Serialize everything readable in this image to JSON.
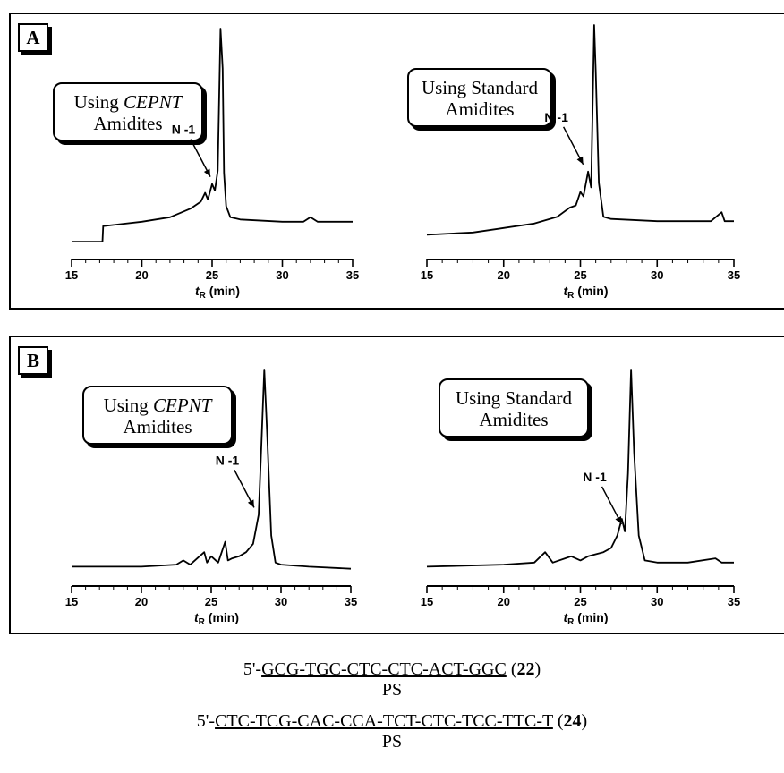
{
  "panels": [
    {
      "label": "A",
      "callouts": [
        {
          "prefix": "Using ",
          "italic": "CEPNT",
          "line2": "Amidites"
        },
        {
          "prefix": "Using Standard",
          "italic": "",
          "line2": "Amidites"
        }
      ]
    },
    {
      "label": "B",
      "callouts": [
        {
          "prefix": "Using ",
          "italic": "CEPNT",
          "line2": "Amidites"
        },
        {
          "prefix": "Using Standard",
          "italic": "",
          "line2": "Amidites"
        }
      ]
    }
  ],
  "axis": {
    "xlabel_main": "t",
    "xlabel_sub": "R",
    "xlabel_unit": " (min)",
    "annotation": "N -1"
  },
  "chart_data": [
    {
      "type": "line",
      "panel": "A",
      "callout": "Using CEPNT Amidites",
      "xlim": [
        15,
        35
      ],
      "xticks": [
        15,
        20,
        25,
        30,
        35
      ],
      "xlabel": "tR (min)",
      "grid": false,
      "annotation": {
        "text": "N -1",
        "x": 25.0
      },
      "series": [
        {
          "x": [
            15,
            17.2,
            17.25,
            20,
            22,
            23.5,
            24.2,
            24.5,
            24.7,
            25.0,
            25.2,
            25.4,
            25.6,
            25.75,
            25.85,
            26.0,
            26.3,
            27,
            30,
            31.5,
            32,
            32.5,
            35
          ],
          "y": [
            0.04,
            0.04,
            0.11,
            0.13,
            0.15,
            0.19,
            0.22,
            0.26,
            0.23,
            0.3,
            0.27,
            0.36,
            1.0,
            0.82,
            0.35,
            0.2,
            0.15,
            0.14,
            0.13,
            0.13,
            0.15,
            0.13,
            0.13
          ]
        }
      ]
    },
    {
      "type": "line",
      "panel": "A",
      "callout": "Using Standard Amidites",
      "xlim": [
        15,
        35
      ],
      "xticks": [
        15,
        20,
        25,
        30,
        35
      ],
      "xlabel": "tR (min)",
      "grid": false,
      "annotation": {
        "text": "N -1",
        "x": 25.3
      },
      "series": [
        {
          "x": [
            15,
            18,
            20,
            22,
            23.5,
            24.3,
            24.7,
            25.0,
            25.2,
            25.5,
            25.7,
            25.9,
            26.0,
            26.2,
            26.5,
            27,
            30,
            33.5,
            34.2,
            34.4,
            34.6,
            35
          ],
          "y": [
            0.07,
            0.08,
            0.1,
            0.12,
            0.15,
            0.19,
            0.2,
            0.26,
            0.24,
            0.35,
            0.28,
            1.0,
            0.8,
            0.3,
            0.15,
            0.14,
            0.13,
            0.13,
            0.17,
            0.13,
            0.13,
            0.13
          ]
        }
      ]
    },
    {
      "type": "line",
      "panel": "B",
      "callout": "Using CEPNT Amidites",
      "xlim": [
        15,
        35
      ],
      "xticks": [
        15,
        20,
        25,
        30,
        35
      ],
      "xlabel": "tR (min)",
      "grid": false,
      "annotation": {
        "text": "N -1",
        "x": 28.2
      },
      "series": [
        {
          "x": [
            15,
            20,
            22.5,
            23,
            23.5,
            24,
            24.5,
            24.7,
            25,
            25.5,
            26,
            26.2,
            26.5,
            27,
            27.5,
            28,
            28.4,
            28.6,
            28.8,
            29.0,
            29.3,
            29.6,
            30,
            32,
            35
          ],
          "y": [
            0.05,
            0.05,
            0.06,
            0.08,
            0.06,
            0.09,
            0.12,
            0.07,
            0.1,
            0.07,
            0.17,
            0.08,
            0.09,
            0.1,
            0.12,
            0.16,
            0.3,
            0.65,
            1.0,
            0.7,
            0.2,
            0.07,
            0.06,
            0.05,
            0.04
          ]
        }
      ]
    },
    {
      "type": "line",
      "panel": "B",
      "callout": "Using Standard Amidites",
      "xlim": [
        15,
        35
      ],
      "xticks": [
        15,
        20,
        25,
        30,
        35
      ],
      "xlabel": "tR (min)",
      "grid": false,
      "annotation": {
        "text": "N -1",
        "x": 27.8
      },
      "series": [
        {
          "x": [
            15,
            20,
            22,
            22.7,
            23.2,
            24,
            24.4,
            25,
            25.5,
            26,
            26.5,
            27,
            27.4,
            27.7,
            27.9,
            28.1,
            28.3,
            28.5,
            28.8,
            29.2,
            30,
            32,
            33.8,
            34.2,
            35
          ],
          "y": [
            0.05,
            0.06,
            0.07,
            0.12,
            0.07,
            0.09,
            0.1,
            0.08,
            0.1,
            0.11,
            0.12,
            0.14,
            0.2,
            0.28,
            0.22,
            0.5,
            1.0,
            0.6,
            0.2,
            0.08,
            0.07,
            0.07,
            0.09,
            0.07,
            0.07
          ]
        }
      ]
    }
  ],
  "sequences": [
    {
      "prefix": "5'-",
      "underlined": "GCG-TGC-CTC-CTC-ACT-GGC",
      "suffix_pre": " (",
      "number": "22",
      "suffix_post": ")",
      "mod": "PS"
    },
    {
      "prefix": "5'-",
      "underlined": "CTC-TCG-CAC-CCA-TCT-CTC-TCC-TTC-T",
      "suffix_pre": " (",
      "number": "24",
      "suffix_post": ")",
      "mod": "PS"
    }
  ]
}
